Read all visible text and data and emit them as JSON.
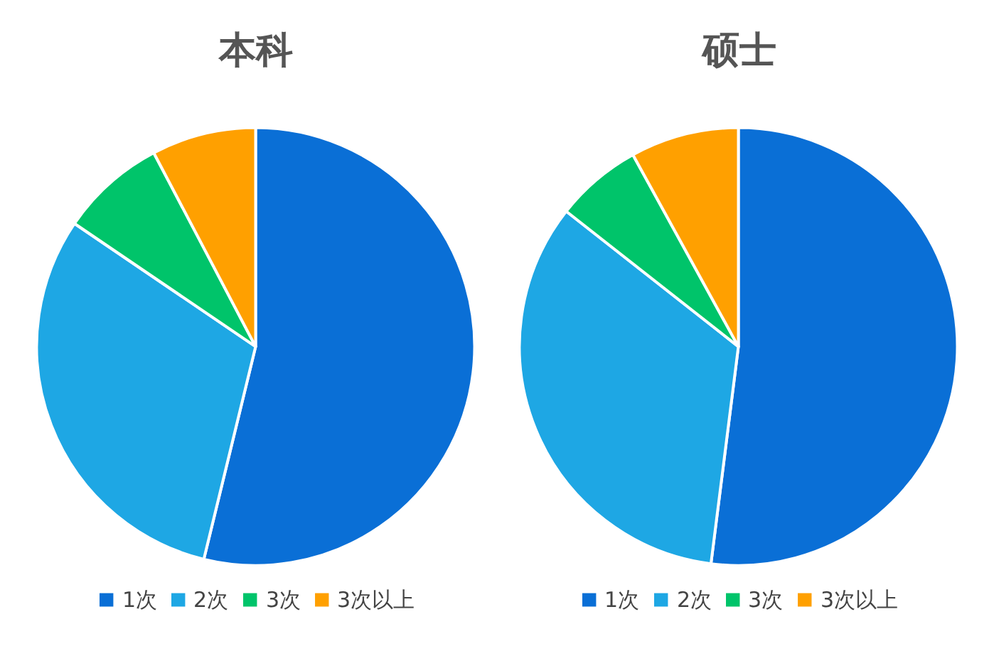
{
  "chart_data": [
    {
      "type": "pie",
      "title": "本科",
      "categories": [
        "1次",
        "2次",
        "3次",
        "3次以上"
      ],
      "values": [
        53.8,
        30.7,
        7.8,
        7.7
      ],
      "colors": [
        "#0a6fd6",
        "#1ea7e4",
        "#00c46a",
        "#ffa000"
      ],
      "legend": "bottom"
    },
    {
      "type": "pie",
      "title": "硕士",
      "categories": [
        "1次",
        "2次",
        "3次",
        "3次以上"
      ],
      "values": [
        52.0,
        33.6,
        6.4,
        8.0
      ],
      "colors": [
        "#0a6fd6",
        "#1ea7e4",
        "#00c46a",
        "#ffa000"
      ],
      "legend": "bottom"
    }
  ]
}
